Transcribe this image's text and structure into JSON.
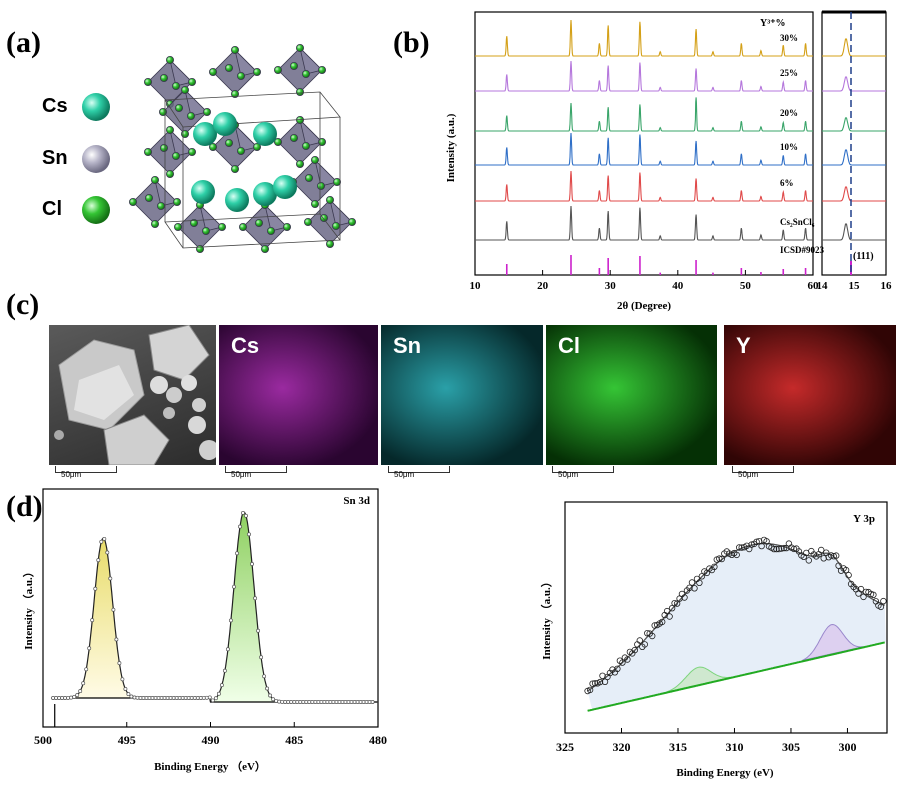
{
  "panels": {
    "a": "(a)",
    "b": "(b)",
    "c": "(c)",
    "d": "(d)"
  },
  "structure": {
    "legend": [
      {
        "label": "Cs",
        "color": "#2fd0a8"
      },
      {
        "label": "Sn",
        "color": "#b6b4c8"
      },
      {
        "label": "Cl",
        "color": "#34c534"
      }
    ]
  },
  "xrd": {
    "ylabel": "Intensity (a.u.)",
    "xlabel": "2θ (Degree)",
    "xticks": [
      "10",
      "20",
      "30",
      "40",
      "50",
      "60"
    ],
    "inset_xticks": [
      "14",
      "15",
      "16"
    ],
    "inset_label": "(111)",
    "header_label": "Y³⁺%",
    "series": [
      {
        "label": "30%",
        "color": "#d4a017"
      },
      {
        "label": "25%",
        "color": "#b577dc"
      },
      {
        "label": "20%",
        "color": "#3aa56a"
      },
      {
        "label": "10%",
        "color": "#2f6fc7"
      },
      {
        "label": "6%",
        "color": "#e04a4a"
      },
      {
        "label": "Cs₂SnCl₆",
        "color": "#555555"
      },
      {
        "label": "ICSD#9023",
        "color": "#cc22cc"
      }
    ]
  },
  "maps": {
    "tiles": [
      {
        "label": "",
        "scale": "50μm"
      },
      {
        "label": "Cs",
        "scale": "50μm"
      },
      {
        "label": "Sn",
        "scale": "50μm"
      },
      {
        "label": "Cl",
        "scale": "50μm"
      },
      {
        "label": "Y",
        "scale": "50μm"
      }
    ]
  },
  "xps_sn": {
    "title": "Sn 3d",
    "ylabel": "Intensity （a.u.）",
    "xlabel": "Binding Energy （eV）",
    "xticks": [
      "500",
      "495",
      "490",
      "485",
      "480"
    ]
  },
  "xps_y": {
    "title": "Y 3p",
    "ylabel": "Intensity （a.u.）",
    "xlabel": "Binding Energy (eV)",
    "xticks": [
      "325",
      "320",
      "315",
      "310",
      "305",
      "300"
    ]
  }
}
